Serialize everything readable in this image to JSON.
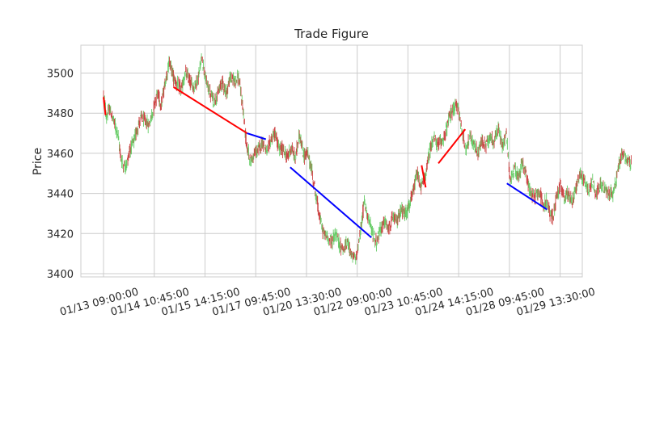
{
  "chart_data": {
    "type": "line",
    "title": "Trade Figure",
    "xlabel": "",
    "ylabel": "Price",
    "grid": true,
    "legend": "none",
    "x_index_range": [
      0,
      1050
    ],
    "ylim": [
      3398,
      3514
    ],
    "x_ticks": [
      {
        "x": 0,
        "label": "01/13 09:00:00"
      },
      {
        "x": 100,
        "label": "01/14 10:45:00"
      },
      {
        "x": 200,
        "label": "01/15 14:15:00"
      },
      {
        "x": 300,
        "label": "01/17 09:45:00"
      },
      {
        "x": 400,
        "label": "01/20 13:30:00"
      },
      {
        "x": 500,
        "label": "01/22 09:00:00"
      },
      {
        "x": 600,
        "label": "01/23 10:45:00"
      },
      {
        "x": 700,
        "label": "01/24 14:15:00"
      },
      {
        "x": 800,
        "label": "01/28 09:45:00"
      },
      {
        "x": 900,
        "label": "01/29 13:30:00"
      }
    ],
    "y_ticks": [
      3400,
      3420,
      3440,
      3460,
      3480,
      3500
    ],
    "price_path": [
      [
        0,
        3489
      ],
      [
        6,
        3478
      ],
      [
        12,
        3482
      ],
      [
        20,
        3476
      ],
      [
        28,
        3470
      ],
      [
        34,
        3458
      ],
      [
        40,
        3453
      ],
      [
        46,
        3455
      ],
      [
        52,
        3462
      ],
      [
        60,
        3466
      ],
      [
        66,
        3472
      ],
      [
        74,
        3478
      ],
      [
        82,
        3476
      ],
      [
        90,
        3474
      ],
      [
        98,
        3482
      ],
      [
        106,
        3490
      ],
      [
        114,
        3484
      ],
      [
        122,
        3496
      ],
      [
        130,
        3506
      ],
      [
        138,
        3498
      ],
      [
        146,
        3494
      ],
      [
        154,
        3492
      ],
      [
        162,
        3500
      ],
      [
        170,
        3496
      ],
      [
        178,
        3493
      ],
      [
        186,
        3497
      ],
      [
        194,
        3508
      ],
      [
        202,
        3496
      ],
      [
        210,
        3490
      ],
      [
        218,
        3486
      ],
      [
        226,
        3490
      ],
      [
        234,
        3496
      ],
      [
        242,
        3490
      ],
      [
        250,
        3498
      ],
      [
        258,
        3496
      ],
      [
        266,
        3498
      ],
      [
        274,
        3484
      ],
      [
        282,
        3464
      ],
      [
        290,
        3456
      ],
      [
        298,
        3460
      ],
      [
        306,
        3462
      ],
      [
        314,
        3466
      ],
      [
        322,
        3460
      ],
      [
        330,
        3467
      ],
      [
        338,
        3470
      ],
      [
        346,
        3462
      ],
      [
        354,
        3462
      ],
      [
        362,
        3458
      ],
      [
        370,
        3463
      ],
      [
        378,
        3457
      ],
      [
        386,
        3470
      ],
      [
        394,
        3459
      ],
      [
        402,
        3460
      ],
      [
        410,
        3452
      ],
      [
        418,
        3440
      ],
      [
        426,
        3428
      ],
      [
        434,
        3420
      ],
      [
        442,
        3418
      ],
      [
        450,
        3416
      ],
      [
        458,
        3420
      ],
      [
        466,
        3414
      ],
      [
        474,
        3412
      ],
      [
        482,
        3416
      ],
      [
        490,
        3408
      ],
      [
        498,
        3408
      ],
      [
        506,
        3420
      ],
      [
        514,
        3436
      ],
      [
        522,
        3428
      ],
      [
        530,
        3420
      ],
      [
        538,
        3416
      ],
      [
        546,
        3422
      ],
      [
        554,
        3426
      ],
      [
        562,
        3422
      ],
      [
        570,
        3428
      ],
      [
        578,
        3426
      ],
      [
        586,
        3432
      ],
      [
        594,
        3430
      ],
      [
        602,
        3433
      ],
      [
        610,
        3440
      ],
      [
        618,
        3450
      ],
      [
        626,
        3443
      ],
      [
        634,
        3448
      ],
      [
        642,
        3460
      ],
      [
        650,
        3468
      ],
      [
        658,
        3464
      ],
      [
        666,
        3466
      ],
      [
        674,
        3470
      ],
      [
        682,
        3478
      ],
      [
        690,
        3482
      ],
      [
        698,
        3484
      ],
      [
        706,
        3472
      ],
      [
        714,
        3462
      ],
      [
        722,
        3468
      ],
      [
        730,
        3464
      ],
      [
        738,
        3460
      ],
      [
        746,
        3466
      ],
      [
        754,
        3464
      ],
      [
        762,
        3468
      ],
      [
        770,
        3466
      ],
      [
        778,
        3472
      ],
      [
        786,
        3464
      ],
      [
        794,
        3470
      ],
      [
        802,
        3446
      ],
      [
        810,
        3452
      ],
      [
        818,
        3448
      ],
      [
        826,
        3456
      ],
      [
        834,
        3448
      ],
      [
        842,
        3440
      ],
      [
        850,
        3438
      ],
      [
        858,
        3442
      ],
      [
        866,
        3434
      ],
      [
        874,
        3436
      ],
      [
        880,
        3430
      ],
      [
        886,
        3428
      ],
      [
        892,
        3438
      ],
      [
        900,
        3444
      ],
      [
        908,
        3438
      ],
      [
        916,
        3440
      ],
      [
        924,
        3436
      ],
      [
        932,
        3444
      ],
      [
        940,
        3450
      ],
      [
        948,
        3446
      ],
      [
        956,
        3442
      ],
      [
        964,
        3446
      ],
      [
        972,
        3440
      ],
      [
        980,
        3444
      ],
      [
        988,
        3442
      ],
      [
        996,
        3440
      ],
      [
        1004,
        3440
      ],
      [
        1010,
        3446
      ],
      [
        1016,
        3454
      ],
      [
        1022,
        3460
      ],
      [
        1028,
        3458
      ],
      [
        1034,
        3456
      ],
      [
        1040,
        3455
      ]
    ],
    "trade_segments": [
      {
        "x0": 0,
        "y0": 3488,
        "x1": 4,
        "y1": 3479,
        "color": "#ff0000"
      },
      {
        "x0": 138,
        "y0": 3493,
        "x1": 283,
        "y1": 3470,
        "color": "#ff0000"
      },
      {
        "x0": 283,
        "y0": 3470,
        "x1": 320,
        "y1": 3467,
        "color": "#0000ff"
      },
      {
        "x0": 368,
        "y0": 3453,
        "x1": 528,
        "y1": 3418,
        "color": "#0000ff"
      },
      {
        "x0": 627,
        "y0": 3454,
        "x1": 635,
        "y1": 3443,
        "color": "#ff0000"
      },
      {
        "x0": 660,
        "y0": 3455,
        "x1": 713,
        "y1": 3472,
        "color": "#ff0000"
      },
      {
        "x0": 795,
        "y0": 3445,
        "x1": 874,
        "y1": 3432,
        "color": "#0000ff"
      }
    ],
    "candle_colors": {
      "up": "#66cc66",
      "down": "#cc4444"
    }
  }
}
